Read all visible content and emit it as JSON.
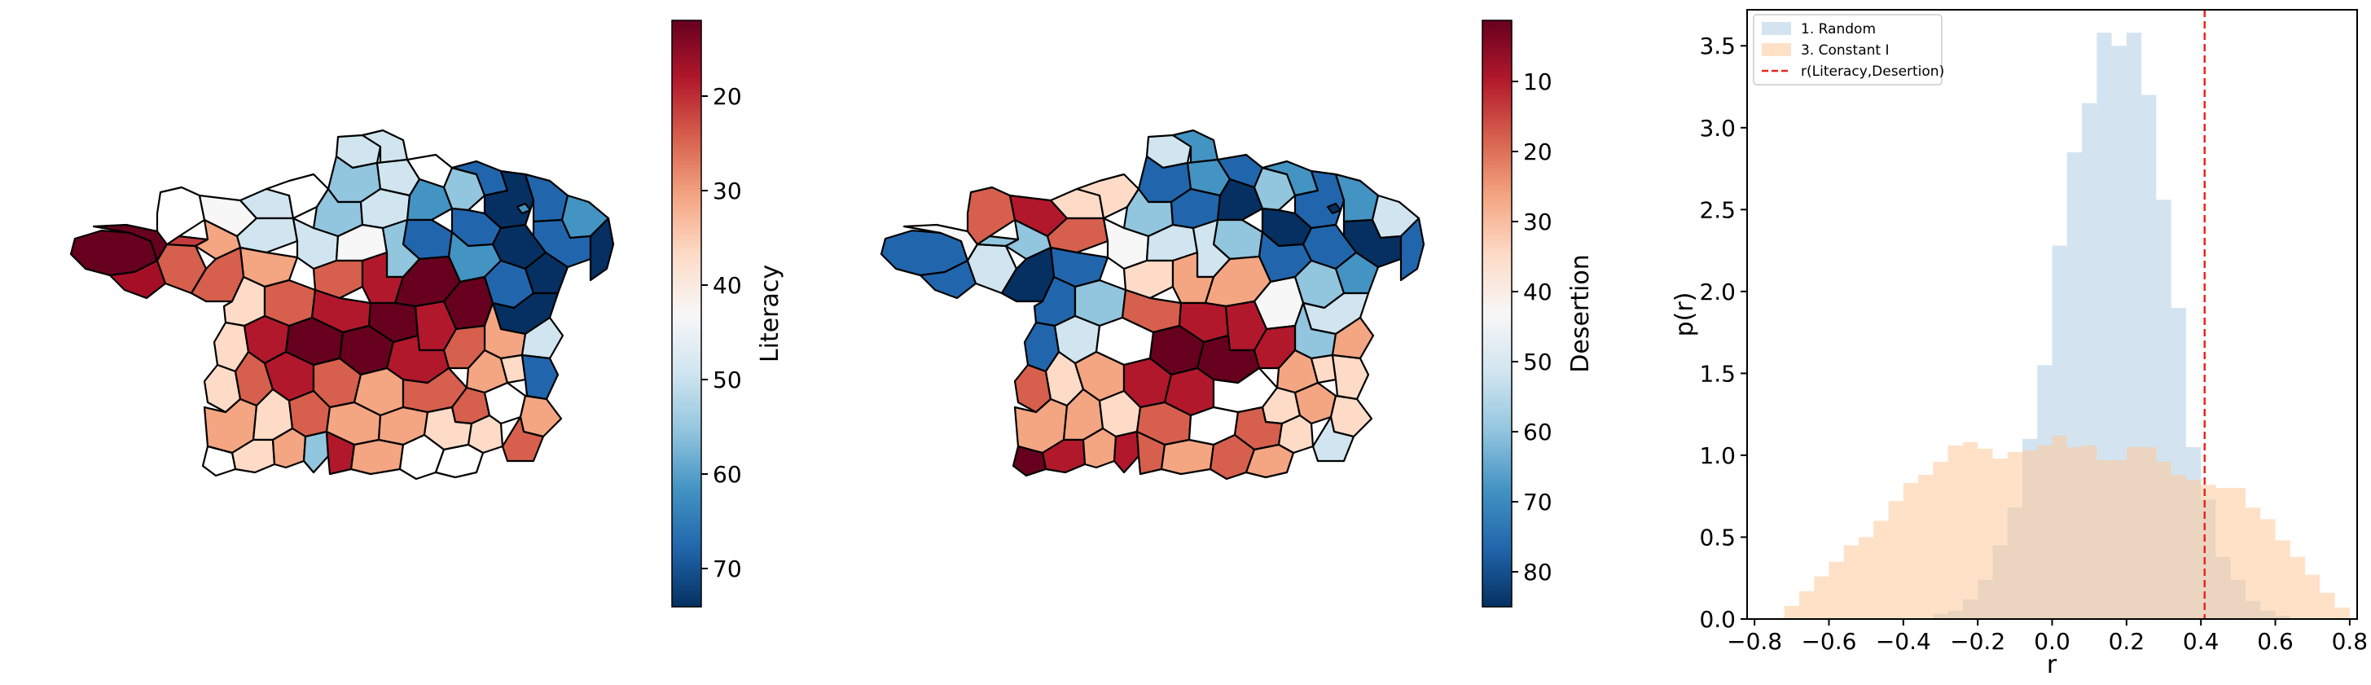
{
  "chart_data": [
    {
      "type": "heatmap",
      "subtype": "choropleth",
      "colormap": "RdBu (reversed axis)",
      "colorbar": {
        "label": "Literacy",
        "ticks": [
          "20",
          "30",
          "40",
          "50",
          "60",
          "70"
        ],
        "range": [
          12,
          74
        ],
        "inverted": true
      },
      "regions": {
        "north_east": "high (60-74)",
        "north_center": "medium-high (45-60)",
        "brittany_west": "low (12-20)",
        "center": "low (12-25)",
        "south_west": "medium-low (25-40)"
      }
    },
    {
      "type": "heatmap",
      "subtype": "choropleth",
      "colormap": "RdBu (reversed axis)",
      "colorbar": {
        "label": "Desertion",
        "ticks": [
          "10",
          "20",
          "30",
          "40",
          "50",
          "60",
          "70",
          "80"
        ],
        "range": [
          1,
          86
        ],
        "inverted": true
      },
      "regions": {
        "north_east": "high (60-86)",
        "brittany_west": "high (60-80)",
        "center": "low (1-15)",
        "south_west": "low-medium (10-35)"
      }
    },
    {
      "type": "histogram",
      "xlabel": "r",
      "ylabel": "p(r)",
      "xlim": [
        -0.82,
        0.82
      ],
      "ylim": [
        0,
        3.72
      ],
      "x_ticks": [
        "−0.8",
        "−0.6",
        "−0.4",
        "−0.2",
        "0.0",
        "0.2",
        "0.4",
        "0.6",
        "0.8"
      ],
      "y_ticks": [
        "0.0",
        "0.5",
        "1.0",
        "1.5",
        "2.0",
        "2.5",
        "3.0",
        "3.5"
      ],
      "bin_start": -0.8,
      "bin_width": 0.04,
      "legend_position": "top-left",
      "series": [
        {
          "name": "1. Random",
          "color": "#aecde3",
          "alpha": 0.55,
          "values": [
            0,
            0,
            0,
            0,
            0,
            0,
            0,
            0,
            0,
            0,
            0,
            0,
            0.03,
            0.05,
            0.12,
            0.24,
            0.45,
            0.68,
            1.1,
            1.55,
            2.28,
            2.85,
            3.15,
            3.58,
            3.5,
            3.58,
            3.2,
            2.56,
            1.9,
            1.05,
            0.73,
            0.38,
            0.24,
            0.11,
            0.05,
            0.02,
            0,
            0,
            0,
            0
          ]
        },
        {
          "name": "3. Constant I",
          "color": "#ffc999",
          "alpha": 0.55,
          "values": [
            0,
            0,
            0.08,
            0.17,
            0.26,
            0.35,
            0.45,
            0.5,
            0.6,
            0.72,
            0.83,
            0.88,
            0.96,
            1.06,
            1.08,
            1.04,
            0.98,
            1.02,
            1.03,
            1.06,
            1.12,
            1.05,
            1.06,
            0.97,
            0.97,
            1.05,
            1.05,
            0.96,
            0.88,
            0.85,
            0.82,
            0.8,
            0.8,
            0.68,
            0.61,
            0.48,
            0.38,
            0.27,
            0.16,
            0.07
          ]
        }
      ],
      "vline": {
        "x": 0.41,
        "label": "r(Literacy,Desertion)",
        "color": "#e8261f",
        "style": "dashed"
      }
    }
  ]
}
